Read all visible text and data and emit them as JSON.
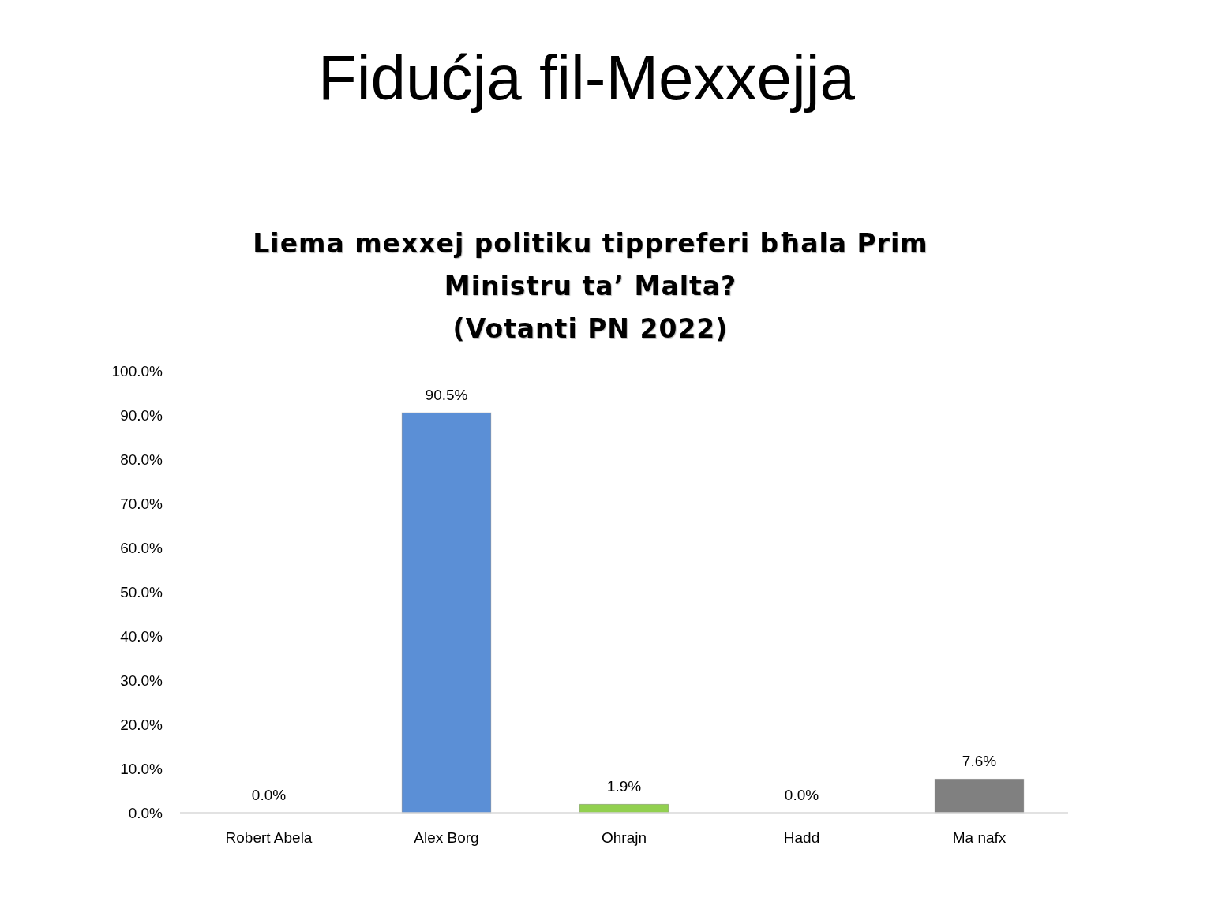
{
  "chart_data": {
    "type": "bar",
    "title": "Fidućja fil-Mexxejja",
    "subtitle": "Liema mexxej politiku tippreferi bħala Prim\nMinistru ta’ Malta?\n(Votanti PN 2022)",
    "categories": [
      "Robert Abela",
      "Alex Borg",
      "Ohrajn",
      "Hadd",
      "Ma nafx"
    ],
    "values": [
      0,
      90.5,
      1.9,
      0,
      7.6
    ],
    "colors": [
      "#c0504d",
      "#5b8fd6",
      "#92d050",
      "#f79646",
      "#808080"
    ],
    "value_labels": [
      "0.0%",
      "90.5%",
      "1.9%",
      "0.0%",
      "7.6%"
    ],
    "ylim": [
      0,
      100
    ],
    "yticks": [
      {
        "value": 0,
        "label": "0.0%"
      },
      {
        "value": 10,
        "label": "10.0%"
      },
      {
        "value": 20,
        "label": "20.0%"
      },
      {
        "value": 30,
        "label": "30.0%"
      },
      {
        "value": 40,
        "label": "40.0%"
      },
      {
        "value": 50,
        "label": "50.0%"
      },
      {
        "value": 60,
        "label": "60.0%"
      },
      {
        "value": 70,
        "label": "70.0%"
      },
      {
        "value": 80,
        "label": "80.0%"
      },
      {
        "value": 90,
        "label": "90.0%"
      },
      {
        "value": 100,
        "label": "100.0%"
      }
    ],
    "grid": false
  }
}
